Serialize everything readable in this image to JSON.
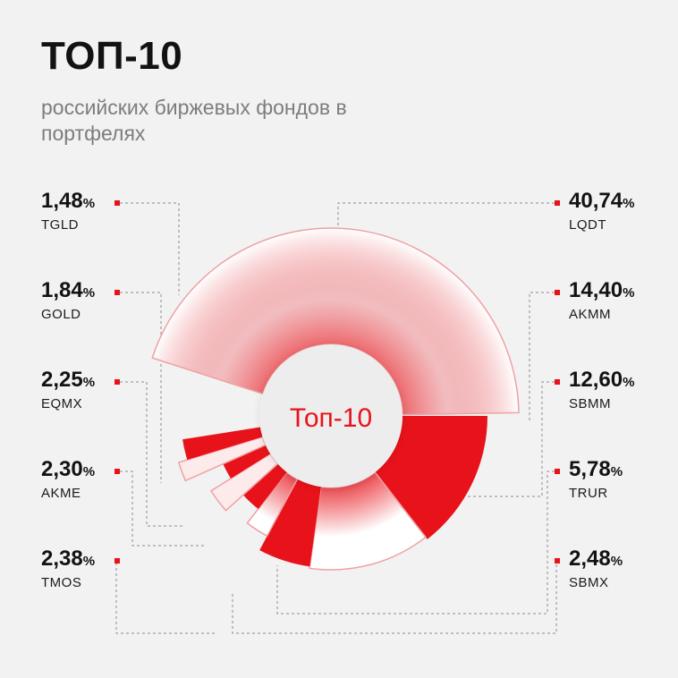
{
  "header": {
    "title": "ТОП-10",
    "subtitle": "российских биржевых фондов в портфелях"
  },
  "colors": {
    "accent": "#e8121a",
    "background": "#f2f2f2",
    "text": "#121212",
    "muted": "#7d7d7d"
  },
  "chart_data": {
    "type": "pie",
    "variant": "radial-donut",
    "center_label": "Топ-10",
    "unit": "%",
    "series": [
      {
        "ticker": "LQDT",
        "value_int": "40",
        "value_dec": ",74",
        "value": 40.74
      },
      {
        "ticker": "AKMM",
        "value_int": "14",
        "value_dec": ",40",
        "value": 14.4
      },
      {
        "ticker": "SBMM",
        "value_int": "12",
        "value_dec": ",60",
        "value": 12.6
      },
      {
        "ticker": "TRUR",
        "value_int": "5",
        "value_dec": ",78",
        "value": 5.78
      },
      {
        "ticker": "SBMX",
        "value_int": "2",
        "value_dec": ",48",
        "value": 2.48
      },
      {
        "ticker": "TMOS",
        "value_int": "2",
        "value_dec": ",38",
        "value": 2.38
      },
      {
        "ticker": "AKME",
        "value_int": "2",
        "value_dec": ",30",
        "value": 2.3
      },
      {
        "ticker": "EQMX",
        "value_int": "2",
        "value_dec": ",25",
        "value": 2.25
      },
      {
        "ticker": "GOLD",
        "value_int": "1",
        "value_dec": ",84",
        "value": 1.84
      },
      {
        "ticker": "TGLD",
        "value_int": "1",
        "value_dec": ",48",
        "value": 1.48
      }
    ]
  }
}
